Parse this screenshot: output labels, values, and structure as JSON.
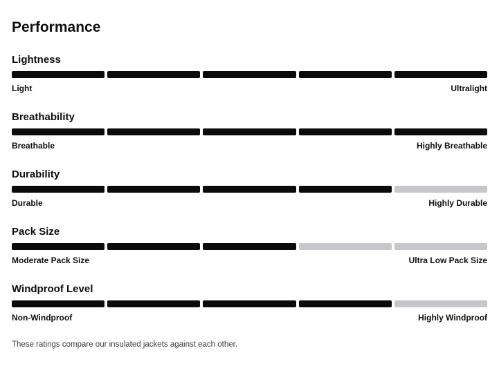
{
  "page": {
    "title": "Performance",
    "footer_note": "These ratings compare our insulated jackets against each other."
  },
  "colors": {
    "segment_filled": "#0b0b0b",
    "segment_empty": "#c6c7cb",
    "text": "#0e0e0e",
    "footer_text": "#3a3a3a"
  },
  "chart_data": {
    "type": "bar",
    "title": "Performance",
    "scale_max": 5,
    "categories": [
      "Lightness",
      "Breathability",
      "Durability",
      "Pack Size",
      "Windproof Level"
    ],
    "values": [
      5,
      5,
      4,
      3,
      4
    ],
    "series": [
      {
        "name": "Lightness",
        "value": 5,
        "min_label": "Light",
        "max_label": "Ultralight"
      },
      {
        "name": "Breathability",
        "value": 5,
        "min_label": "Breathable",
        "max_label": "Highly Breathable"
      },
      {
        "name": "Durability",
        "value": 4,
        "min_label": "Durable",
        "max_label": "Highly Durable"
      },
      {
        "name": "Pack Size",
        "value": 3,
        "min_label": "Moderate Pack Size",
        "max_label": "Ultra Low Pack Size"
      },
      {
        "name": "Windproof Level",
        "value": 4,
        "min_label": "Non-Windproof",
        "max_label": "Highly Windproof"
      }
    ],
    "note": "These ratings compare our insulated jackets against each other."
  }
}
